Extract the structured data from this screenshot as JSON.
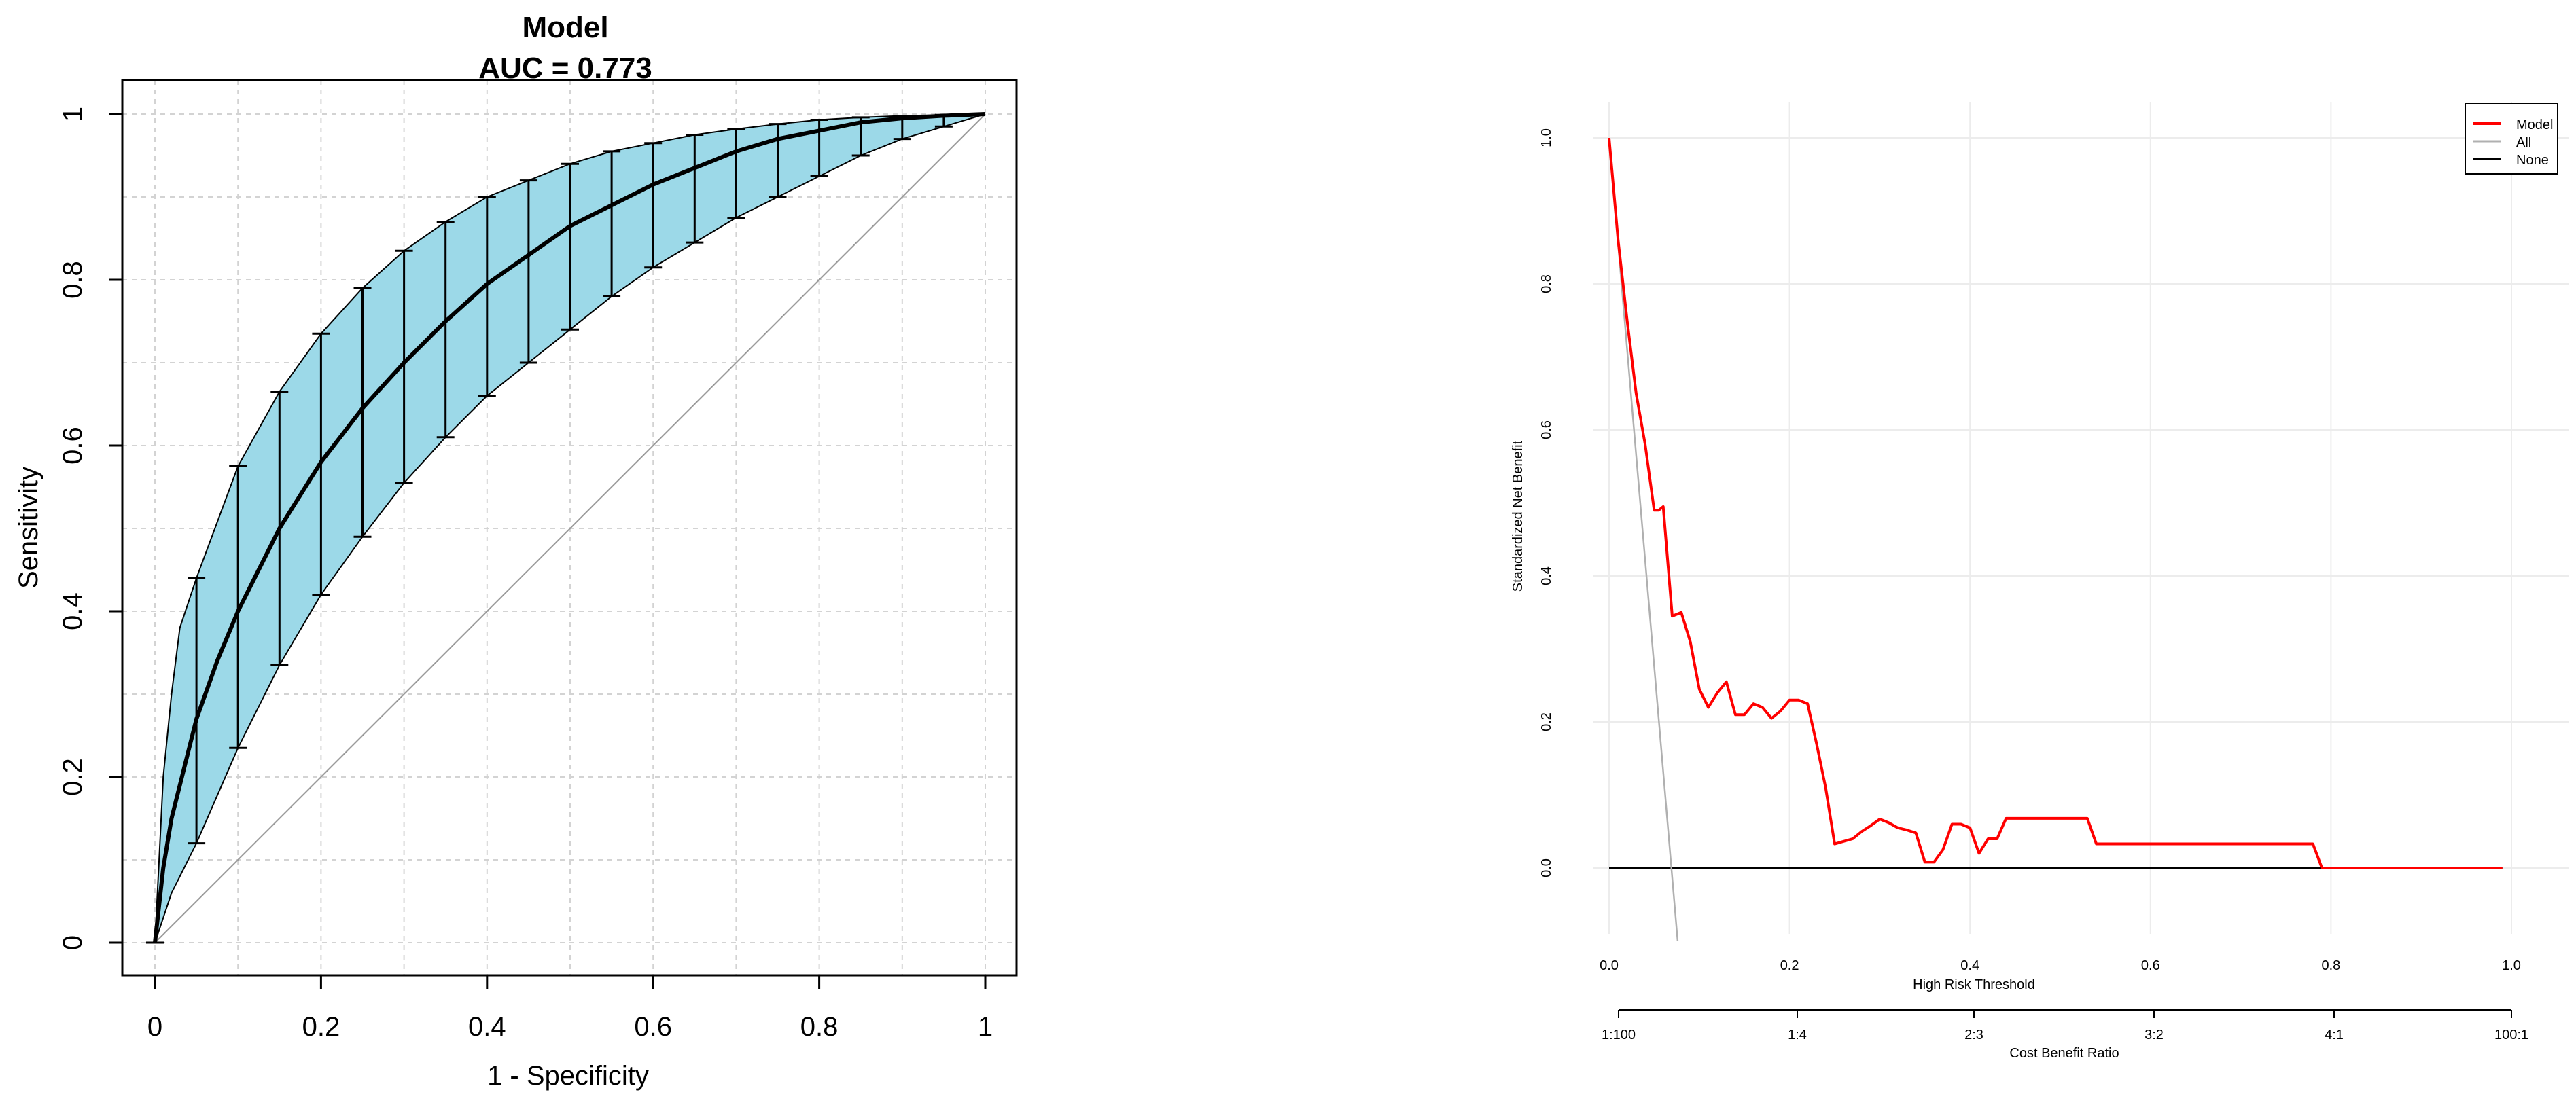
{
  "chart_data": [
    {
      "type": "line",
      "title": "Model",
      "subtitle": "AUC =  0.773",
      "xlabel": "1 - Specificity",
      "ylabel": "Sensitivity",
      "xlim": [
        0,
        1
      ],
      "ylim": [
        0,
        1
      ],
      "x_ticks": [
        "0",
        "0.2",
        "0.4",
        "0.6",
        "0.8",
        "1"
      ],
      "y_ticks": [
        "0",
        "0.2",
        "0.4",
        "0.6",
        "0.8",
        "1"
      ],
      "grid": true,
      "band_color": "#9cd9e8",
      "series": [
        {
          "x": [
            0,
            0.01,
            0.02,
            0.03,
            0.05,
            0.075,
            0.1,
            0.15,
            0.2,
            0.25,
            0.3,
            0.35,
            0.4,
            0.45,
            0.5,
            0.55,
            0.6,
            0.65,
            0.7,
            0.75,
            0.8,
            0.85,
            0.9,
            0.95,
            1
          ],
          "values": [
            0,
            0.09,
            0.15,
            0.19,
            0.27,
            0.34,
            0.4,
            0.5,
            0.58,
            0.645,
            0.7,
            0.75,
            0.795,
            0.83,
            0.865,
            0.89,
            0.915,
            0.935,
            0.955,
            0.97,
            0.98,
            0.99,
            0.995,
            0.998,
            1
          ]
        }
      ],
      "ci_band": {
        "x": [
          0,
          0.01,
          0.02,
          0.03,
          0.05,
          0.1,
          0.15,
          0.2,
          0.25,
          0.3,
          0.35,
          0.4,
          0.45,
          0.5,
          0.55,
          0.6,
          0.65,
          0.7,
          0.75,
          0.8,
          0.85,
          0.9,
          0.95,
          1
        ],
        "lower": [
          0,
          0.03,
          0.06,
          0.08,
          0.12,
          0.235,
          0.335,
          0.42,
          0.49,
          0.555,
          0.61,
          0.66,
          0.7,
          0.74,
          0.78,
          0.815,
          0.845,
          0.875,
          0.9,
          0.925,
          0.95,
          0.97,
          0.985,
          1
        ],
        "upper": [
          0,
          0.2,
          0.3,
          0.38,
          0.44,
          0.575,
          0.665,
          0.735,
          0.79,
          0.835,
          0.87,
          0.9,
          0.92,
          0.94,
          0.955,
          0.965,
          0.975,
          0.982,
          0.988,
          0.993,
          0.996,
          0.998,
          0.999,
          1
        ]
      }
    },
    {
      "type": "line",
      "xlabel": "High Risk Threshold",
      "ylabel": "Standardized Net Benefit",
      "xlabel2": "Cost Benefit Ratio",
      "xlim": [
        0,
        1
      ],
      "ylim": [
        -0.1,
        1.0
      ],
      "x_ticks": [
        "0.0",
        "0.2",
        "0.4",
        "0.6",
        "0.8",
        "1.0"
      ],
      "y_ticks": [
        "0.0",
        "0.2",
        "0.4",
        "0.6",
        "0.8",
        "1.0"
      ],
      "x2_ticks": [
        "1:100",
        "1:4",
        "2:3",
        "3:2",
        "4:1",
        "100:1"
      ],
      "grid": true,
      "legend": "top-right",
      "series": [
        {
          "name": "Model",
          "color": "#ff0000",
          "x": [
            0,
            0.01,
            0.02,
            0.03,
            0.04,
            0.05,
            0.055,
            0.06,
            0.07,
            0.08,
            0.09,
            0.1,
            0.11,
            0.12,
            0.13,
            0.14,
            0.15,
            0.16,
            0.17,
            0.18,
            0.19,
            0.2,
            0.21,
            0.22,
            0.23,
            0.24,
            0.25,
            0.27,
            0.28,
            0.29,
            0.3,
            0.31,
            0.32,
            0.33,
            0.34,
            0.35,
            0.36,
            0.37,
            0.38,
            0.39,
            0.4,
            0.41,
            0.42,
            0.43,
            0.44,
            0.45,
            0.5,
            0.53,
            0.54,
            0.7,
            0.78,
            0.79,
            0.99
          ],
          "values": [
            1.0,
            0.86,
            0.75,
            0.65,
            0.58,
            0.49,
            0.49,
            0.495,
            0.345,
            0.35,
            0.31,
            0.245,
            0.22,
            0.24,
            0.255,
            0.21,
            0.21,
            0.225,
            0.22,
            0.205,
            0.215,
            0.23,
            0.23,
            0.225,
            0.17,
            0.11,
            0.033,
            0.04,
            0.05,
            0.058,
            0.067,
            0.062,
            0.055,
            0.052,
            0.048,
            0.008,
            0.008,
            0.025,
            0.06,
            0.06,
            0.055,
            0.02,
            0.04,
            0.04,
            0.068,
            0.068,
            0.068,
            0.068,
            0.033,
            0.033,
            0.033,
            0.0,
            0.0
          ]
        },
        {
          "name": "All",
          "color": "#b0b0b0",
          "x": [
            0,
            0.076
          ],
          "values": [
            1.0,
            -0.1
          ]
        },
        {
          "name": "None",
          "color": "#000000",
          "x": [
            0,
            0.99
          ],
          "values": [
            0,
            0
          ]
        }
      ]
    }
  ]
}
